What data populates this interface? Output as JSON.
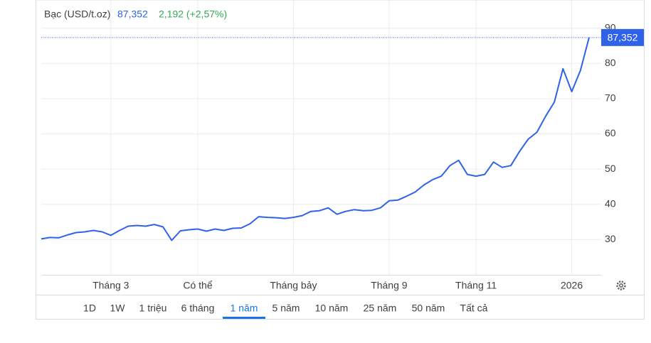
{
  "chart_data": {
    "type": "line",
    "title": "Bạc (USD/t.oz)",
    "price": {
      "value": 87.352,
      "label": "87,352"
    },
    "change_label": "2,192 (+2,57%)",
    "categories": [
      null,
      null,
      null,
      null,
      null,
      null,
      null,
      null,
      "Tháng 3",
      null,
      null,
      null,
      null,
      null,
      null,
      null,
      null,
      null,
      "Có thể",
      null,
      null,
      null,
      null,
      null,
      null,
      null,
      null,
      null,
      null,
      "Tháng bảy",
      null,
      null,
      null,
      null,
      null,
      null,
      null,
      null,
      null,
      null,
      "Tháng 9",
      null,
      null,
      null,
      null,
      null,
      null,
      null,
      null,
      null,
      "Tháng 11",
      null,
      null,
      null,
      null,
      null,
      null,
      null,
      null,
      null,
      null,
      "2026",
      null,
      null
    ],
    "series": [
      {
        "name": "Bạc (USD/t.oz)",
        "color": "#2f62e8",
        "values": [
          30.2,
          30.6,
          30.5,
          31.3,
          32,
          32.2,
          32.6,
          32.2,
          31.2,
          32.6,
          33.8,
          34,
          33.8,
          34.3,
          33.6,
          29.8,
          32.5,
          32.8,
          33,
          32.4,
          33,
          32.6,
          33.2,
          33.3,
          34.5,
          36.5,
          36.3,
          36.2,
          36,
          36.3,
          36.8,
          38,
          38.2,
          39,
          37.2,
          38,
          38.5,
          38.2,
          38.3,
          39,
          41,
          41.2,
          42.3,
          43.5,
          45.5,
          47,
          48,
          51,
          52.5,
          48.5,
          48,
          48.5,
          52,
          50.5,
          51,
          55,
          58.5,
          60.5,
          65,
          69,
          78.5,
          72,
          78,
          87.352
        ]
      }
    ],
    "ylim": [
      20,
      98
    ],
    "yticks": [
      30,
      40,
      50,
      60,
      70,
      80,
      90
    ],
    "grid": true,
    "ranges": [
      "1D",
      "1W",
      "1 triệu",
      "6 tháng",
      "1 năm",
      "5 năm",
      "10 năm",
      "25 năm",
      "50 năm",
      "Tất cả"
    ],
    "selected_range_index": 4
  }
}
